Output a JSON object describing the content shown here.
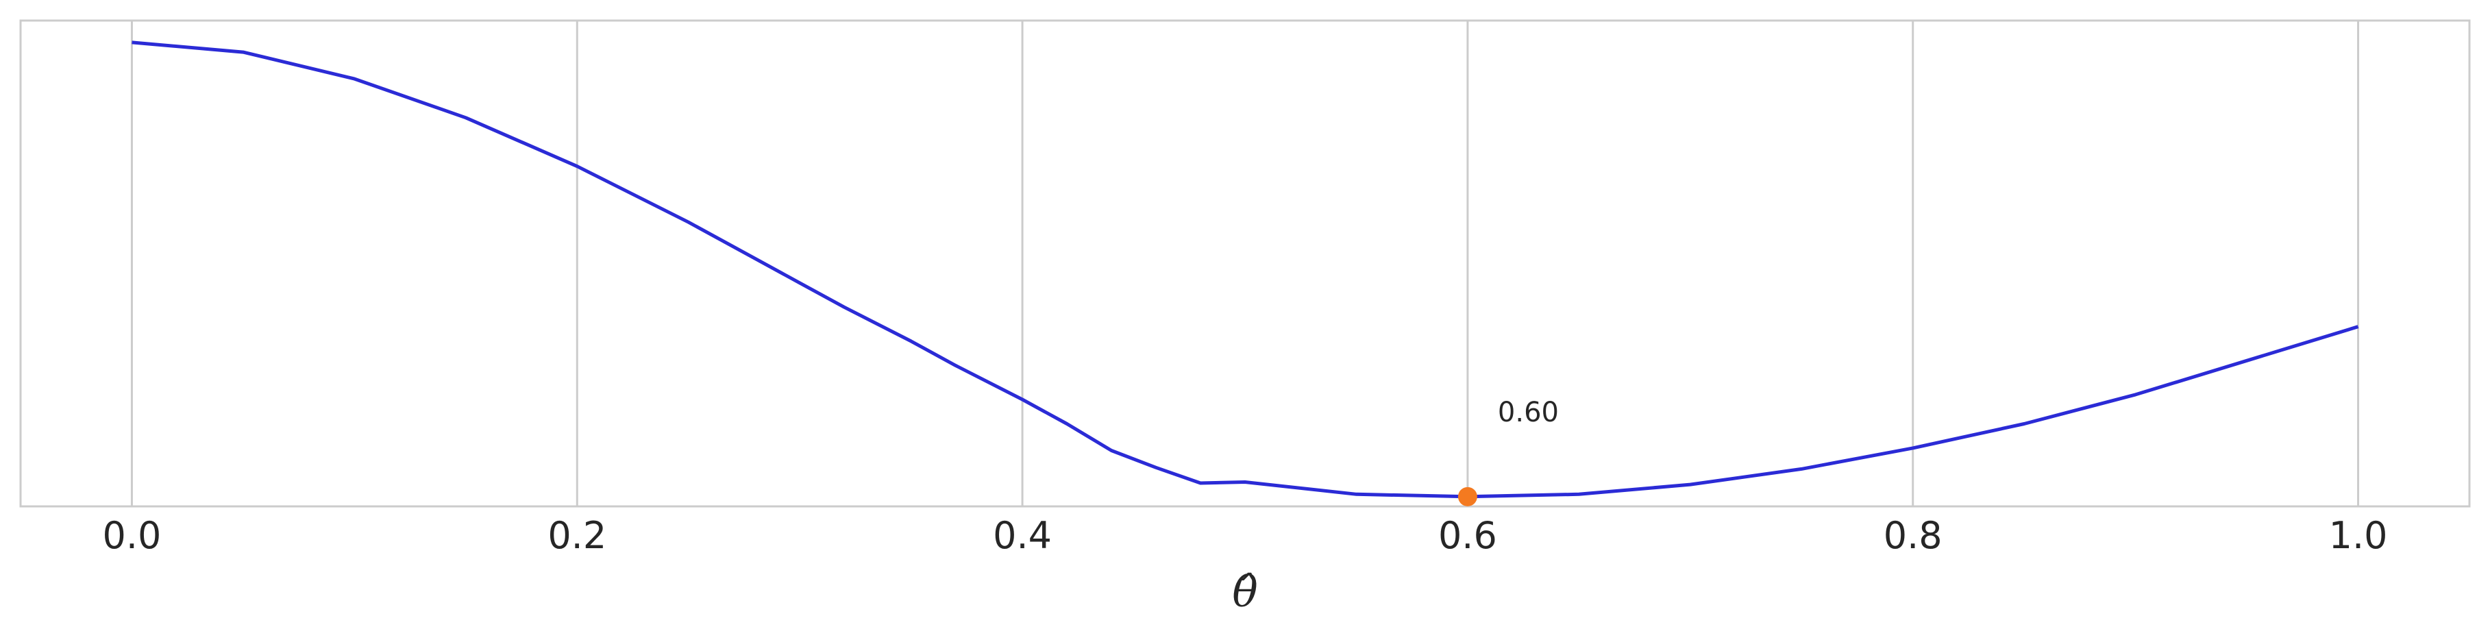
{
  "chart_data": {
    "type": "line",
    "xlabel": "θ̂",
    "xlim": [
      -0.05,
      1.05
    ],
    "ylim": [
      0.0,
      1.0
    ],
    "x_ticks": [
      "0.0",
      "0.2",
      "0.4",
      "0.6",
      "0.8",
      "1.0"
    ],
    "x_tick_values": [
      0.0,
      0.2,
      0.4,
      0.6,
      0.8,
      1.0
    ],
    "grid": "vertical",
    "series": [
      {
        "color": "#2b2bd6",
        "x": [
          0.0,
          0.05,
          0.1,
          0.15,
          0.2,
          0.25,
          0.3,
          0.32,
          0.35,
          0.37,
          0.4,
          0.42,
          0.44,
          0.46,
          0.48,
          0.5,
          0.55,
          0.6,
          0.65,
          0.7,
          0.75,
          0.8,
          0.85,
          0.9,
          0.95,
          1.0
        ],
        "y": [
          0.955,
          0.935,
          0.88,
          0.8,
          0.7,
          0.585,
          0.46,
          0.41,
          0.34,
          0.29,
          0.22,
          0.17,
          0.115,
          0.08,
          0.048,
          0.05,
          0.025,
          0.02,
          0.025,
          0.045,
          0.077,
          0.12,
          0.17,
          0.23,
          0.3,
          0.37
        ]
      }
    ],
    "marker": {
      "x": 0.6,
      "y": 0.02,
      "color": "#f47a20"
    },
    "annotation": {
      "text": "0.60",
      "x": 0.6,
      "y": 0.2
    }
  }
}
